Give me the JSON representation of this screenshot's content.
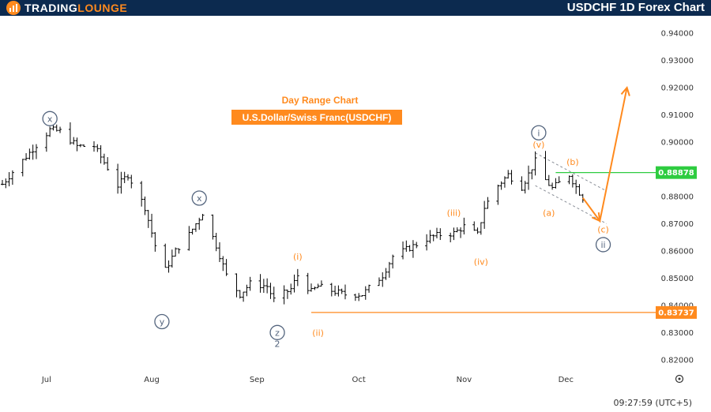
{
  "header": {
    "logo_text_1": "TRADING",
    "logo_text_2": "LOUNGE",
    "title": "USDCHF 1D Forex Chart"
  },
  "colors": {
    "header_bg": "#0c2a4f",
    "brand_orange": "#ff8a1e",
    "support_line": "#ff8a1e",
    "resistance_line": "#2ecc40",
    "wave_navy": "#54657e",
    "candles": "#000000"
  },
  "icons": [
    "logo-bars-icon",
    "settings-icon"
  ],
  "chart_data": {
    "type": "candlestick",
    "subtitle": "Day Range Chart",
    "banner": "U.S.Dollar/Swiss Franc(USDCHF)",
    "x_axis": {
      "labels": [
        "Jul",
        "Aug",
        "Sep",
        "Oct",
        "Nov",
        "Dec"
      ],
      "dates": [
        "2024-07-01",
        "2024-08-01",
        "2024-09-01",
        "2024-10-01",
        "2024-11-01",
        "2024-12-01"
      ],
      "range": [
        "2024-06-18",
        "2024-12-27"
      ]
    },
    "y_axis": {
      "ticks": [
        "0.82000",
        "0.83000",
        "0.84000",
        "0.85000",
        "0.86000",
        "0.87000",
        "0.88000",
        "0.89000",
        "0.90000",
        "0.91000",
        "0.92000",
        "0.93000",
        "0.94000"
      ],
      "range": [
        0.8153,
        0.9464
      ],
      "position": "right"
    },
    "key_levels": [
      {
        "price": 0.88878,
        "label": "0.88878",
        "color": "#2ecc40",
        "from": "2024-11-28"
      },
      {
        "price": 0.83737,
        "label": "0.83737",
        "color": "#ff8a1e",
        "from": "2024-09-17"
      }
    ],
    "close_path": [
      [
        "2024-06-18",
        0.8845
      ],
      [
        "2024-06-21",
        0.889
      ],
      [
        "2024-06-27",
        0.8975
      ],
      [
        "2024-07-02",
        0.9045
      ],
      [
        "2024-07-05",
        0.904
      ],
      [
        "2024-07-10",
        0.8985
      ],
      [
        "2024-07-15",
        0.8985
      ],
      [
        "2024-07-19",
        0.8905
      ],
      [
        "2024-07-22",
        0.884
      ],
      [
        "2024-07-25",
        0.888
      ],
      [
        "2024-07-30",
        0.876
      ],
      [
        "2024-08-02",
        0.862
      ],
      [
        "2024-08-05",
        0.853
      ],
      [
        "2024-08-08",
        0.86
      ],
      [
        "2024-08-12",
        0.866
      ],
      [
        "2024-08-16",
        0.874
      ],
      [
        "2024-08-20",
        0.862
      ],
      [
        "2024-08-23",
        0.851
      ],
      [
        "2024-08-27",
        0.844
      ],
      [
        "2024-08-30",
        0.848
      ],
      [
        "2024-09-04",
        0.847
      ],
      [
        "2024-09-06",
        0.842
      ],
      [
        "2024-09-11",
        0.846
      ],
      [
        "2024-09-13",
        0.851
      ],
      [
        "2024-09-17",
        0.845
      ],
      [
        "2024-09-19",
        0.847
      ],
      [
        "2024-09-24",
        0.845
      ],
      [
        "2024-09-27",
        0.844
      ],
      [
        "2024-10-02",
        0.844
      ],
      [
        "2024-10-08",
        0.851
      ],
      [
        "2024-10-11",
        0.858
      ],
      [
        "2024-10-15",
        0.8605
      ],
      [
        "2024-10-22",
        0.865
      ],
      [
        "2024-10-25",
        0.866
      ],
      [
        "2024-10-29",
        0.8665
      ],
      [
        "2024-11-01",
        0.869
      ],
      [
        "2024-11-05",
        0.866
      ],
      [
        "2024-11-07",
        0.876
      ],
      [
        "2024-11-11",
        0.884
      ],
      [
        "2024-11-14",
        0.888
      ],
      [
        "2024-11-18",
        0.8835
      ],
      [
        "2024-11-22",
        0.893
      ],
      [
        "2024-11-25",
        0.886
      ],
      [
        "2024-11-27",
        0.883
      ],
      [
        "2024-12-02",
        0.888
      ],
      [
        "2024-12-04",
        0.8835
      ],
      [
        "2024-12-06",
        0.8795
      ]
    ],
    "wave_labels": [
      {
        "text": "x",
        "date": "2024-07-02",
        "price": 0.9086,
        "style": "circle",
        "color": "#54657e"
      },
      {
        "text": "x",
        "date": "2024-08-15",
        "price": 0.8794,
        "style": "circle",
        "color": "#54657e"
      },
      {
        "text": "y",
        "date": "2024-08-04",
        "price": 0.834,
        "style": "circle",
        "color": "#54657e"
      },
      {
        "text": "z",
        "date": "2024-09-07",
        "price": 0.83,
        "style": "circle",
        "color": "#54657e"
      },
      {
        "text": "2",
        "date": "2024-09-07",
        "price": 0.8259,
        "style": "plain",
        "color": "#54657e"
      },
      {
        "text": "i",
        "date": "2024-11-23",
        "price": 0.9034,
        "style": "circle",
        "color": "#54657e"
      },
      {
        "text": "ii",
        "date": "2024-12-12",
        "price": 0.8623,
        "style": "circle",
        "color": "#54657e"
      },
      {
        "text": "(i)",
        "date": "2024-09-13",
        "price": 0.858,
        "style": "plain",
        "color": "#ff8a1e"
      },
      {
        "text": "(ii)",
        "date": "2024-09-19",
        "price": 0.83,
        "style": "plain",
        "color": "#ff8a1e"
      },
      {
        "text": "(iii)",
        "date": "2024-10-29",
        "price": 0.874,
        "style": "plain",
        "color": "#ff8a1e"
      },
      {
        "text": "(iv)",
        "date": "2024-11-06",
        "price": 0.856,
        "style": "plain",
        "color": "#ff8a1e"
      },
      {
        "text": "(v)",
        "date": "2024-11-23",
        "price": 0.8991,
        "style": "plain",
        "color": "#ff8a1e"
      },
      {
        "text": "(b)",
        "date": "2024-12-03",
        "price": 0.8928,
        "style": "plain",
        "color": "#ff8a1e"
      },
      {
        "text": "(a)",
        "date": "2024-11-26",
        "price": 0.874,
        "style": "plain",
        "color": "#ff8a1e"
      },
      {
        "text": "(c)",
        "date": "2024-12-12",
        "price": 0.868,
        "style": "plain",
        "color": "#ff8a1e"
      }
    ],
    "channel": [
      {
        "from": [
          "2024-11-22",
          0.896
        ],
        "to": [
          "2024-12-13",
          0.882
        ]
      },
      {
        "from": [
          "2024-11-22",
          0.884
        ],
        "to": [
          "2024-12-13",
          0.87
        ]
      }
    ],
    "projection": [
      [
        "2024-12-06",
        0.8795
      ],
      [
        "2024-12-11",
        0.871
      ],
      [
        "2024-12-19",
        0.92
      ]
    ],
    "footer": {
      "time": "09:27:59 (UTC+5)"
    }
  }
}
